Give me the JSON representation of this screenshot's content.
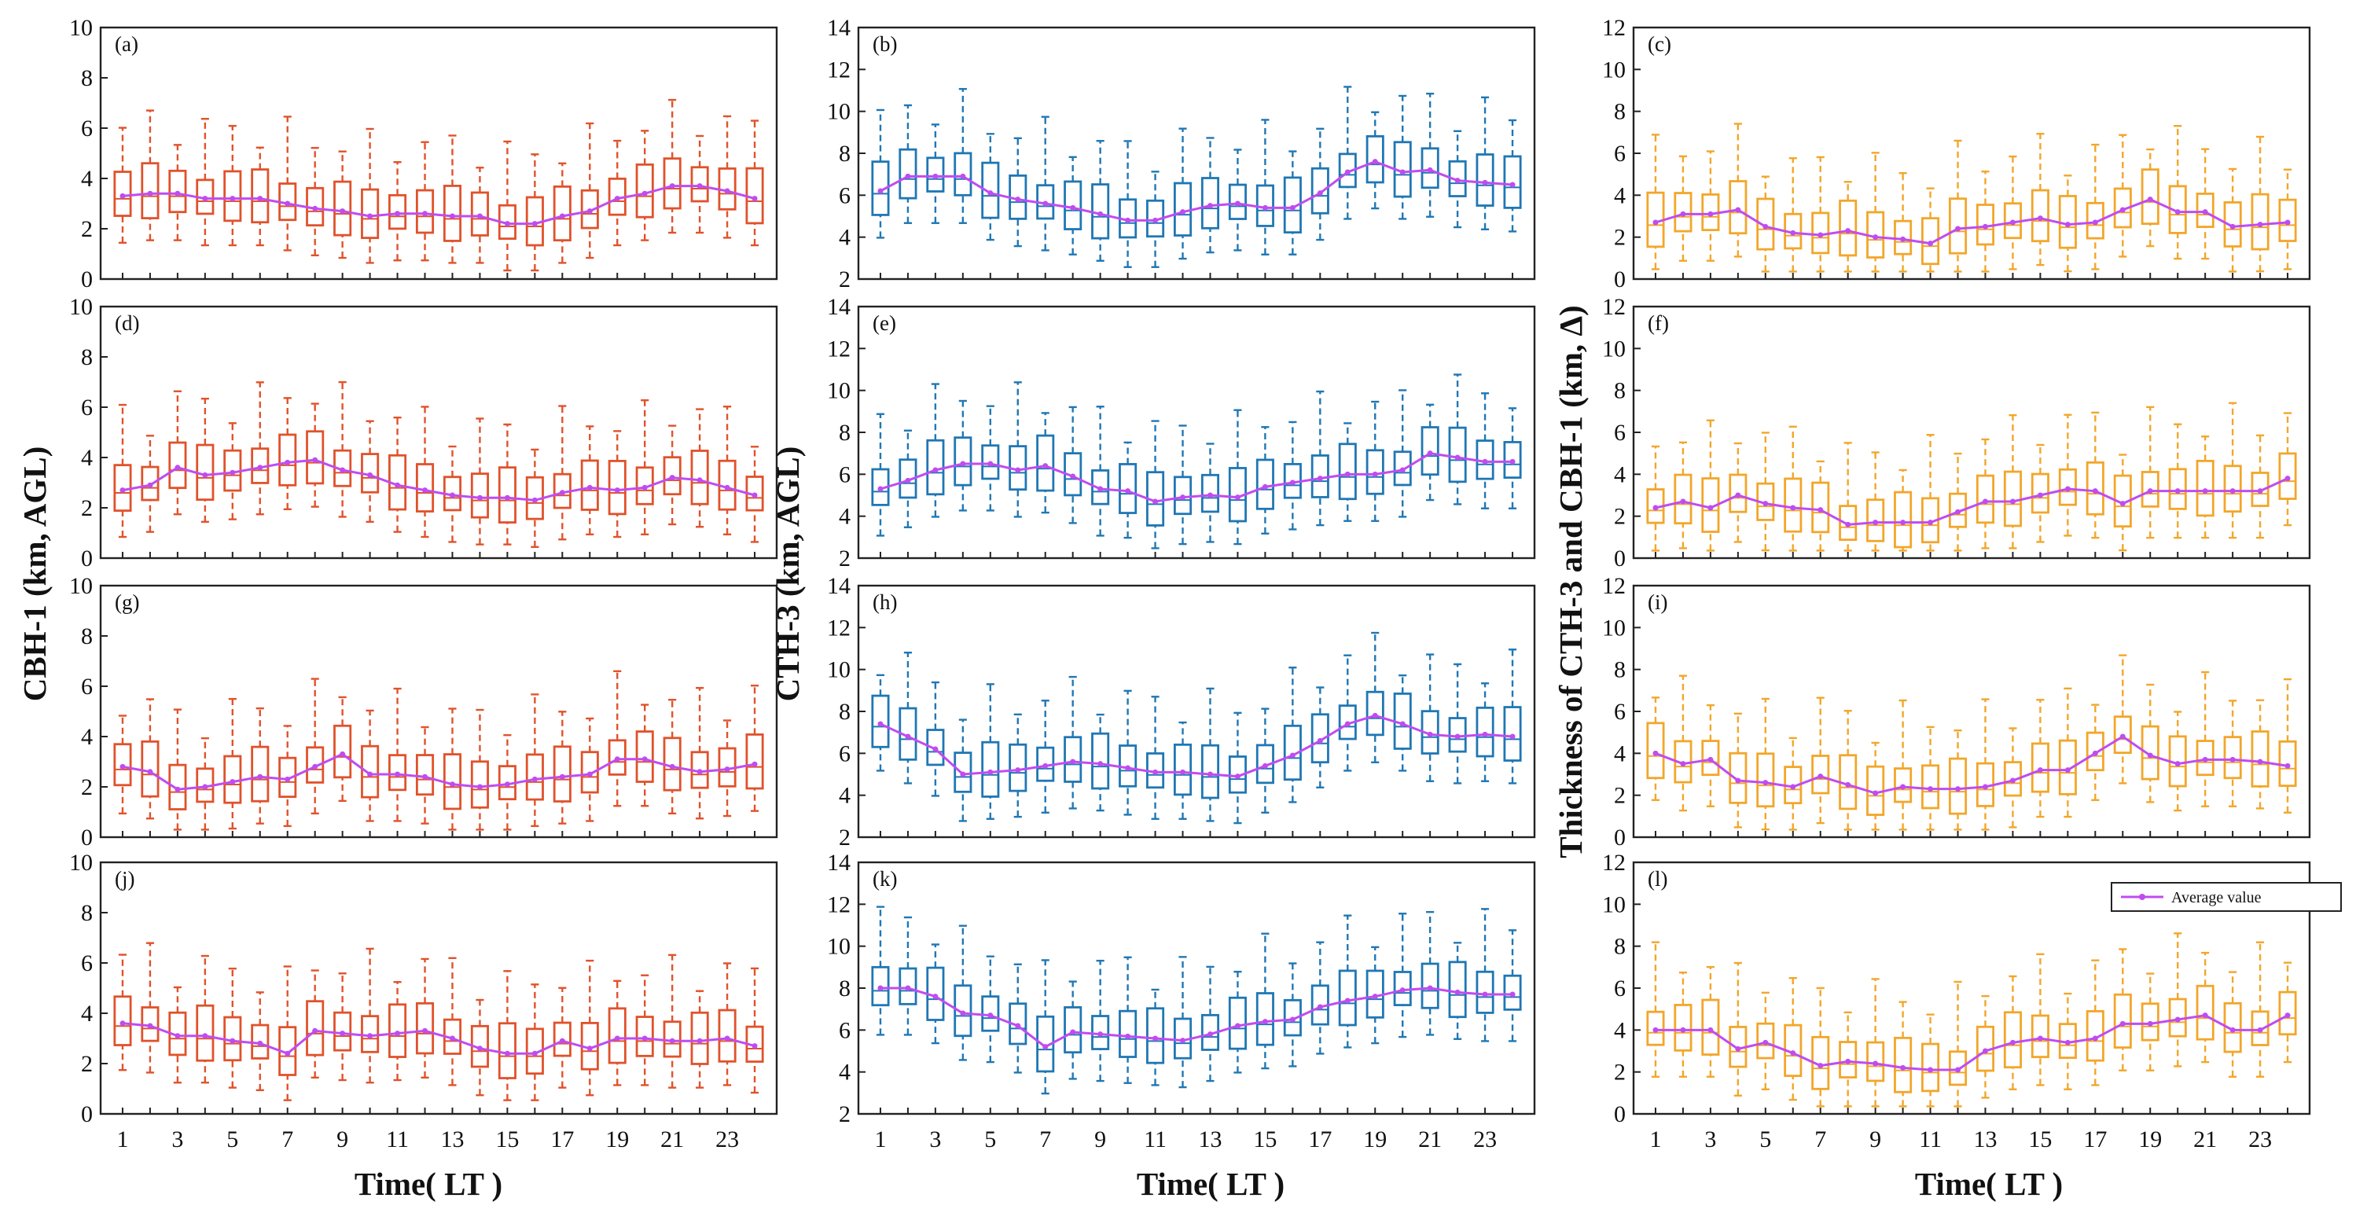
{
  "figure": {
    "ylabels": [
      "CBH-1 (km, AGL)",
      "CTH-3 (km, AGL)",
      "Thickness of CTH-3 and CBH-1 (km, Δ)"
    ],
    "xlabel": "Time( LT )",
    "legend_label": "Average value",
    "colors": {
      "col0": "#e0522b",
      "col1": "#1f77b4",
      "col2": "#f2a62a",
      "mean": "#c04cf0"
    }
  },
  "chart_data": [
    {
      "type": "box",
      "panel": "(a)",
      "ylabel": "CBH-1 (km, AGL)",
      "ylim": [
        0,
        10
      ],
      "yticks": [
        0,
        2,
        4,
        6,
        8,
        10
      ],
      "x": [
        1,
        2,
        3,
        4,
        5,
        6,
        7,
        8,
        9,
        10,
        11,
        12,
        13,
        14,
        15,
        16,
        17,
        18,
        19,
        20,
        21,
        22,
        23,
        24
      ],
      "xticklabels": [
        1,
        3,
        5,
        7,
        9,
        11,
        13,
        15,
        17,
        19,
        21,
        23
      ],
      "mean": [
        3.3,
        3.4,
        3.4,
        3.2,
        3.2,
        3.2,
        3.0,
        2.8,
        2.7,
        2.5,
        2.6,
        2.6,
        2.5,
        2.5,
        2.2,
        2.2,
        2.5,
        2.7,
        3.2,
        3.4,
        3.7,
        3.7,
        3.5,
        3.2
      ]
    },
    {
      "type": "box",
      "panel": "(b)",
      "ylabel": "CTH-3 (km, AGL)",
      "ylim": [
        2,
        14
      ],
      "yticks": [
        2,
        4,
        6,
        8,
        10,
        12,
        14
      ],
      "x": [
        1,
        2,
        3,
        4,
        5,
        6,
        7,
        8,
        9,
        10,
        11,
        12,
        13,
        14,
        15,
        16,
        17,
        18,
        19,
        20,
        21,
        22,
        23,
        24
      ],
      "xticklabels": [
        1,
        3,
        5,
        7,
        9,
        11,
        13,
        15,
        17,
        19,
        21,
        23
      ],
      "mean": [
        6.2,
        6.9,
        6.9,
        6.9,
        6.1,
        5.8,
        5.6,
        5.4,
        5.1,
        4.8,
        4.8,
        5.2,
        5.5,
        5.6,
        5.4,
        5.4,
        6.1,
        7.1,
        7.6,
        7.1,
        7.2,
        6.7,
        6.6,
        6.5
      ]
    },
    {
      "type": "box",
      "panel": "(c)",
      "ylabel": "Thickness of CTH-3 and CBH-1 (km, Δ)",
      "ylim": [
        0,
        12
      ],
      "yticks": [
        0,
        2,
        4,
        6,
        8,
        10,
        12
      ],
      "x": [
        1,
        2,
        3,
        4,
        5,
        6,
        7,
        8,
        9,
        10,
        11,
        12,
        13,
        14,
        15,
        16,
        17,
        18,
        19,
        20,
        21,
        22,
        23,
        24
      ],
      "xticklabels": [
        1,
        3,
        5,
        7,
        9,
        11,
        13,
        15,
        17,
        19,
        21,
        23
      ],
      "mean": [
        2.7,
        3.1,
        3.1,
        3.3,
        2.5,
        2.2,
        2.1,
        2.3,
        2.0,
        1.9,
        1.7,
        2.4,
        2.5,
        2.7,
        2.9,
        2.6,
        2.7,
        3.3,
        3.8,
        3.2,
        3.2,
        2.5,
        2.6,
        2.7
      ]
    },
    {
      "type": "box",
      "panel": "(d)",
      "ylabel": "CBH-1 (km, AGL)",
      "ylim": [
        0,
        10
      ],
      "yticks": [
        0,
        2,
        4,
        6,
        8,
        10
      ],
      "x": [
        1,
        2,
        3,
        4,
        5,
        6,
        7,
        8,
        9,
        10,
        11,
        12,
        13,
        14,
        15,
        16,
        17,
        18,
        19,
        20,
        21,
        22,
        23,
        24
      ],
      "xticklabels": [
        1,
        3,
        5,
        7,
        9,
        11,
        13,
        15,
        17,
        19,
        21,
        23
      ],
      "mean": [
        2.7,
        2.9,
        3.6,
        3.3,
        3.4,
        3.6,
        3.8,
        3.9,
        3.5,
        3.3,
        2.9,
        2.7,
        2.5,
        2.4,
        2.4,
        2.3,
        2.6,
        2.8,
        2.7,
        2.8,
        3.2,
        3.1,
        2.8,
        2.5
      ]
    },
    {
      "type": "box",
      "panel": "(e)",
      "ylabel": "CTH-3 (km, AGL)",
      "ylim": [
        2,
        14
      ],
      "yticks": [
        2,
        4,
        6,
        8,
        10,
        12,
        14
      ],
      "x": [
        1,
        2,
        3,
        4,
        5,
        6,
        7,
        8,
        9,
        10,
        11,
        12,
        13,
        14,
        15,
        16,
        17,
        18,
        19,
        20,
        21,
        22,
        23,
        24
      ],
      "xticklabels": [
        1,
        3,
        5,
        7,
        9,
        11,
        13,
        15,
        17,
        19,
        21,
        23
      ],
      "mean": [
        5.3,
        5.7,
        6.2,
        6.5,
        6.5,
        6.2,
        6.4,
        5.9,
        5.3,
        5.2,
        4.7,
        4.9,
        5.0,
        4.9,
        5.4,
        5.6,
        5.8,
        6.0,
        6.0,
        6.2,
        7.0,
        6.8,
        6.6,
        6.6
      ]
    },
    {
      "type": "box",
      "panel": "(f)",
      "ylabel": "Thickness of CTH-3 and CBH-1 (km, Δ)",
      "ylim": [
        0,
        12
      ],
      "yticks": [
        0,
        2,
        4,
        6,
        8,
        10,
        12
      ],
      "x": [
        1,
        2,
        3,
        4,
        5,
        6,
        7,
        8,
        9,
        10,
        11,
        12,
        13,
        14,
        15,
        16,
        17,
        18,
        19,
        20,
        21,
        22,
        23,
        24
      ],
      "xticklabels": [
        1,
        3,
        5,
        7,
        9,
        11,
        13,
        15,
        17,
        19,
        21,
        23
      ],
      "mean": [
        2.4,
        2.7,
        2.4,
        3.0,
        2.6,
        2.4,
        2.3,
        1.6,
        1.7,
        1.7,
        1.7,
        2.2,
        2.7,
        2.7,
        3.0,
        3.3,
        3.2,
        2.6,
        3.2,
        3.2,
        3.2,
        3.2,
        3.2,
        3.8
      ]
    },
    {
      "type": "box",
      "panel": "(g)",
      "ylabel": "CBH-1 (km, AGL)",
      "ylim": [
        0,
        10
      ],
      "yticks": [
        0,
        2,
        4,
        6,
        8,
        10
      ],
      "x": [
        1,
        2,
        3,
        4,
        5,
        6,
        7,
        8,
        9,
        10,
        11,
        12,
        13,
        14,
        15,
        16,
        17,
        18,
        19,
        20,
        21,
        22,
        23,
        24
      ],
      "xticklabels": [
        1,
        3,
        5,
        7,
        9,
        11,
        13,
        15,
        17,
        19,
        21,
        23
      ],
      "mean": [
        2.8,
        2.6,
        1.9,
        2.0,
        2.2,
        2.4,
        2.3,
        2.8,
        3.3,
        2.5,
        2.5,
        2.4,
        2.1,
        2.0,
        2.1,
        2.3,
        2.4,
        2.5,
        3.1,
        3.1,
        2.8,
        2.6,
        2.7,
        2.9
      ]
    },
    {
      "type": "box",
      "panel": "(h)",
      "ylabel": "CTH-3 (km, AGL)",
      "ylim": [
        2,
        14
      ],
      "yticks": [
        2,
        4,
        6,
        8,
        10,
        12,
        14
      ],
      "x": [
        1,
        2,
        3,
        4,
        5,
        6,
        7,
        8,
        9,
        10,
        11,
        12,
        13,
        14,
        15,
        16,
        17,
        18,
        19,
        20,
        21,
        22,
        23,
        24
      ],
      "xticklabels": [
        1,
        3,
        5,
        7,
        9,
        11,
        13,
        15,
        17,
        19,
        21,
        23
      ],
      "mean": [
        7.4,
        6.8,
        6.2,
        5.0,
        5.1,
        5.2,
        5.4,
        5.6,
        5.5,
        5.3,
        5.1,
        5.1,
        5.0,
        4.9,
        5.4,
        5.9,
        6.6,
        7.4,
        7.8,
        7.4,
        6.9,
        6.8,
        6.9,
        6.8
      ]
    },
    {
      "type": "box",
      "panel": "(i)",
      "ylabel": "Thickness of CTH-3 and CBH-1 (km, Δ)",
      "ylim": [
        0,
        12
      ],
      "yticks": [
        0,
        2,
        4,
        6,
        8,
        10,
        12
      ],
      "x": [
        1,
        2,
        3,
        4,
        5,
        6,
        7,
        8,
        9,
        10,
        11,
        12,
        13,
        14,
        15,
        16,
        17,
        18,
        19,
        20,
        21,
        22,
        23,
        24
      ],
      "xticklabels": [
        1,
        3,
        5,
        7,
        9,
        11,
        13,
        15,
        17,
        19,
        21,
        23
      ],
      "mean": [
        4.0,
        3.5,
        3.7,
        2.7,
        2.6,
        2.4,
        2.9,
        2.5,
        2.1,
        2.4,
        2.3,
        2.3,
        2.4,
        2.7,
        3.2,
        3.2,
        4.0,
        4.8,
        3.9,
        3.5,
        3.7,
        3.7,
        3.6,
        3.4
      ]
    },
    {
      "type": "box",
      "panel": "(j)",
      "ylabel": "CBH-1 (km, AGL)",
      "ylim": [
        0,
        10
      ],
      "yticks": [
        0,
        2,
        4,
        6,
        8,
        10
      ],
      "x": [
        1,
        2,
        3,
        4,
        5,
        6,
        7,
        8,
        9,
        10,
        11,
        12,
        13,
        14,
        15,
        16,
        17,
        18,
        19,
        20,
        21,
        22,
        23,
        24
      ],
      "xticklabels": [
        1,
        3,
        5,
        7,
        9,
        11,
        13,
        15,
        17,
        19,
        21,
        23
      ],
      "mean": [
        3.6,
        3.5,
        3.1,
        3.1,
        2.9,
        2.8,
        2.4,
        3.3,
        3.2,
        3.1,
        3.2,
        3.3,
        3.0,
        2.6,
        2.4,
        2.4,
        2.9,
        2.6,
        3.0,
        3.0,
        2.9,
        2.9,
        3.0,
        2.7
      ]
    },
    {
      "type": "box",
      "panel": "(k)",
      "ylabel": "CTH-3 (km, AGL)",
      "ylim": [
        2,
        14
      ],
      "yticks": [
        2,
        4,
        6,
        8,
        10,
        12,
        14
      ],
      "x": [
        1,
        2,
        3,
        4,
        5,
        6,
        7,
        8,
        9,
        10,
        11,
        12,
        13,
        14,
        15,
        16,
        17,
        18,
        19,
        20,
        21,
        22,
        23,
        24
      ],
      "xticklabels": [
        1,
        3,
        5,
        7,
        9,
        11,
        13,
        15,
        17,
        19,
        21,
        23
      ],
      "mean": [
        8.0,
        8.0,
        7.6,
        6.8,
        6.7,
        6.2,
        5.2,
        5.9,
        5.8,
        5.7,
        5.6,
        5.5,
        5.8,
        6.2,
        6.4,
        6.5,
        7.1,
        7.4,
        7.6,
        7.9,
        8.0,
        7.8,
        7.7,
        7.7
      ]
    },
    {
      "type": "box",
      "panel": "(l)",
      "ylabel": "Thickness of CTH-3 and CBH-1 (km, Δ)",
      "ylim": [
        0,
        12
      ],
      "yticks": [
        0,
        2,
        4,
        6,
        8,
        10,
        12
      ],
      "x": [
        1,
        2,
        3,
        4,
        5,
        6,
        7,
        8,
        9,
        10,
        11,
        12,
        13,
        14,
        15,
        16,
        17,
        18,
        19,
        20,
        21,
        22,
        23,
        24
      ],
      "xticklabels": [
        1,
        3,
        5,
        7,
        9,
        11,
        13,
        15,
        17,
        19,
        21,
        23
      ],
      "mean": [
        4.0,
        4.0,
        4.0,
        3.1,
        3.4,
        2.9,
        2.3,
        2.5,
        2.4,
        2.2,
        2.1,
        2.1,
        3.0,
        3.4,
        3.6,
        3.4,
        3.6,
        4.3,
        4.3,
        4.5,
        4.7,
        4.0,
        4.0,
        4.7
      ]
    }
  ]
}
